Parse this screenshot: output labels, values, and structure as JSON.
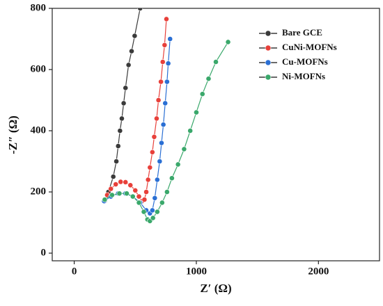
{
  "chart_data": {
    "type": "line",
    "xlabel": "Z′ (Ω)",
    "ylabel": "-Z″ (Ω)",
    "xlim": [
      -180,
      2500
    ],
    "ylim": [
      -25,
      800
    ],
    "xticks": [
      0,
      1000,
      2000
    ],
    "yticks": [
      0,
      200,
      400,
      600,
      800
    ],
    "legend": "upper right",
    "series": [
      {
        "name": "Bare GCE",
        "color": "#3a3a3a",
        "x": [
          250,
          280,
          320,
          345,
          360,
          375,
          390,
          405,
          420,
          445,
          470,
          495,
          540
        ],
        "values": [
          170,
          200,
          250,
          300,
          350,
          400,
          440,
          490,
          540,
          615,
          660,
          710,
          800
        ]
      },
      {
        "name": "CuNi-MOFNs",
        "color": "#e8403a",
        "x": [
          245,
          270,
          300,
          340,
          380,
          420,
          460,
          500,
          530,
          555,
          575,
          590,
          605,
          620,
          640,
          655,
          675,
          690,
          710,
          725,
          740,
          755
        ],
        "values": [
          170,
          190,
          210,
          225,
          233,
          232,
          222,
          205,
          185,
          170,
          175,
          200,
          240,
          280,
          330,
          380,
          440,
          500,
          560,
          625,
          680,
          765
        ]
      },
      {
        "name": "Cu-MOFNs",
        "color": "#2a6fd4",
        "x": [
          245,
          300,
          360,
          420,
          480,
          540,
          590,
          620,
          640,
          660,
          680,
          700,
          715,
          730,
          745,
          760,
          770,
          785
        ],
        "values": [
          170,
          185,
          195,
          195,
          185,
          165,
          140,
          130,
          140,
          180,
          240,
          300,
          360,
          420,
          490,
          560,
          620,
          700
        ]
      },
      {
        "name": "Ni-MOFNs",
        "color": "#3aa86b",
        "x": [
          250,
          310,
          370,
          430,
          480,
          530,
          570,
          600,
          620,
          645,
          680,
          720,
          760,
          800,
          850,
          900,
          950,
          1000,
          1050,
          1100,
          1160,
          1260
        ],
        "values": [
          175,
          190,
          195,
          195,
          185,
          165,
          135,
          110,
          105,
          115,
          135,
          165,
          200,
          245,
          290,
          340,
          400,
          460,
          520,
          570,
          625,
          690
        ]
      }
    ]
  }
}
